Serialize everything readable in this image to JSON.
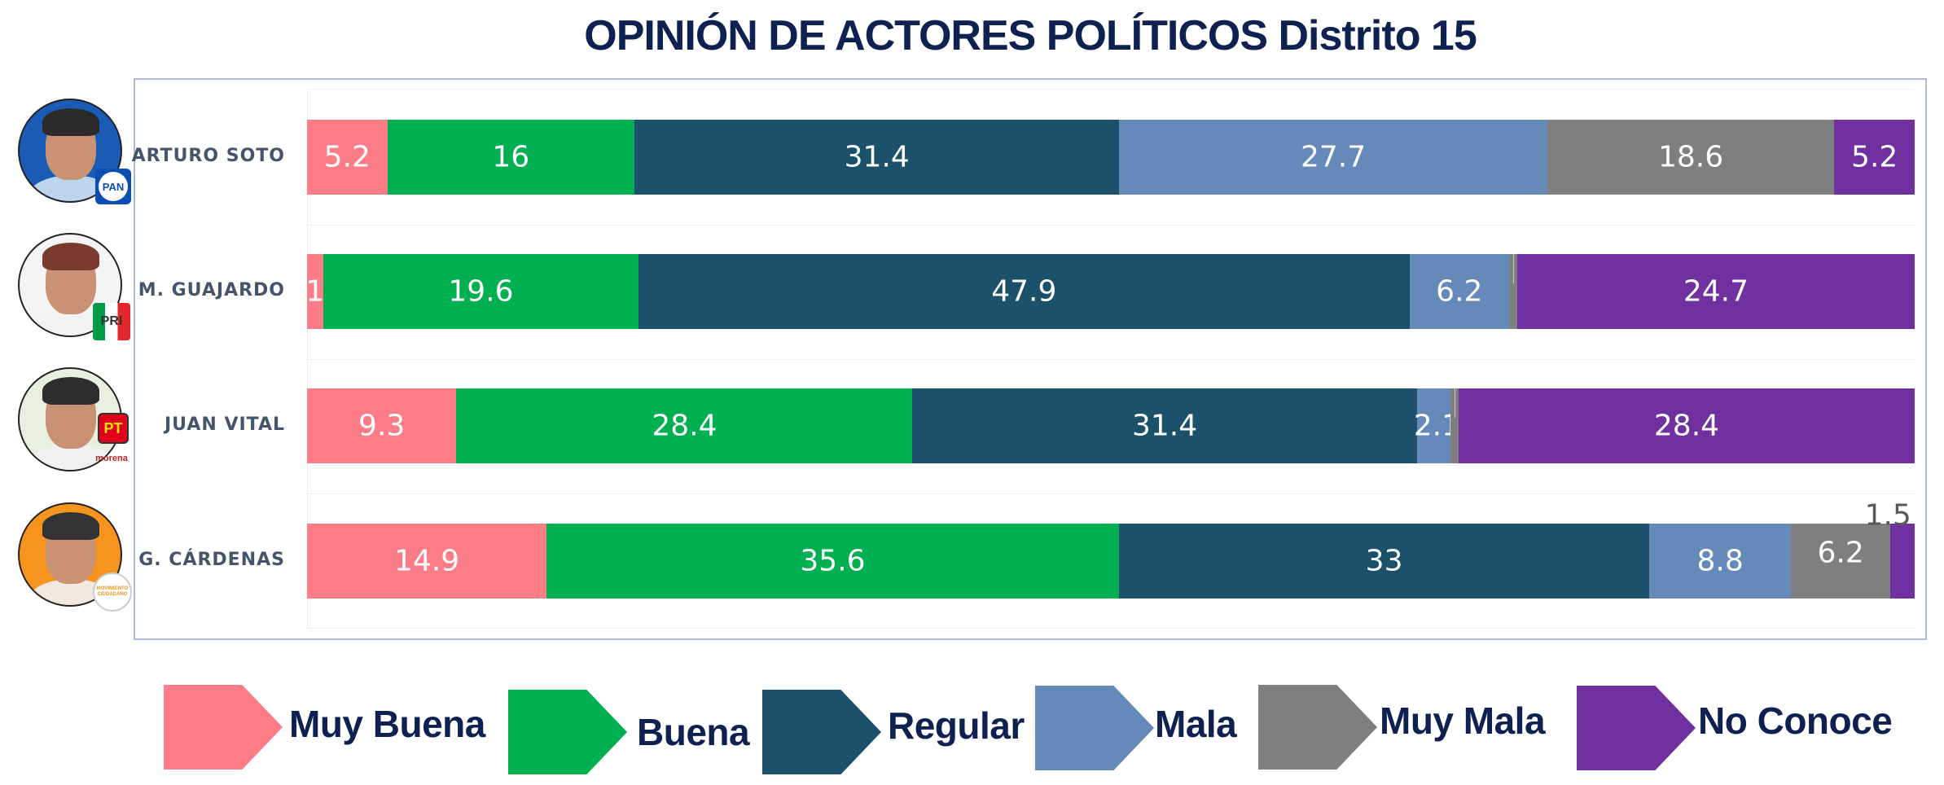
{
  "chart_data": {
    "type": "bar",
    "orientation": "horizontal-stacked-100",
    "title": "OPINIÓN DE ACTORES POLÍTICOS Distrito 15",
    "categories": [
      "ARTURO SOTO",
      "M. GUAJARDO",
      "JUAN VITAL",
      "G. CÁRDENAS"
    ],
    "series": [
      {
        "name": "Muy Buena",
        "color": "#fc7c88",
        "values": [
          5.2,
          1,
          9.3,
          14.9
        ]
      },
      {
        "name": "Buena",
        "color": "#00b050",
        "values": [
          16,
          19.6,
          28.4,
          35.6
        ]
      },
      {
        "name": "Regular",
        "color": "#1b516b",
        "values": [
          31.4,
          47.9,
          31.4,
          33
        ]
      },
      {
        "name": "Mala",
        "color": "#6589b8",
        "values": [
          27.7,
          6.2,
          2.1,
          8.8
        ]
      },
      {
        "name": "Muy Mala",
        "color": "#7f7f7f",
        "values": [
          18.6,
          0.5,
          0.5,
          6.2
        ]
      },
      {
        "name": "No Conoce",
        "color": "#7030a0",
        "values": [
          5.2,
          24.7,
          28.4,
          1.5
        ]
      }
    ],
    "xlabel": "",
    "ylabel": "",
    "grid": false,
    "legend_position": "bottom"
  },
  "candidates": [
    {
      "name": "ARTURO SOTO",
      "party": "PAN",
      "photo_bg": "#1a5bb5",
      "hair": "#2b2b2b",
      "shirt": "#bcd6ee"
    },
    {
      "name": "M. GUAJARDO",
      "party": "PRI",
      "photo_bg": "#f4f4f4",
      "hair": "#7a3a2e",
      "shirt": "#f2f2f2"
    },
    {
      "name": "JUAN VITAL",
      "party": "PT",
      "party2": "morena",
      "photo_bg": "#e8eee0",
      "hair": "#2d2d2d",
      "shirt": "#f0f0f0"
    },
    {
      "name": "G. CÁRDENAS",
      "party": "MOVIMIENTO CIUDADANO",
      "photo_bg": "#f7941d",
      "hair": "#333333",
      "shirt": "#f2e8e2"
    }
  ]
}
